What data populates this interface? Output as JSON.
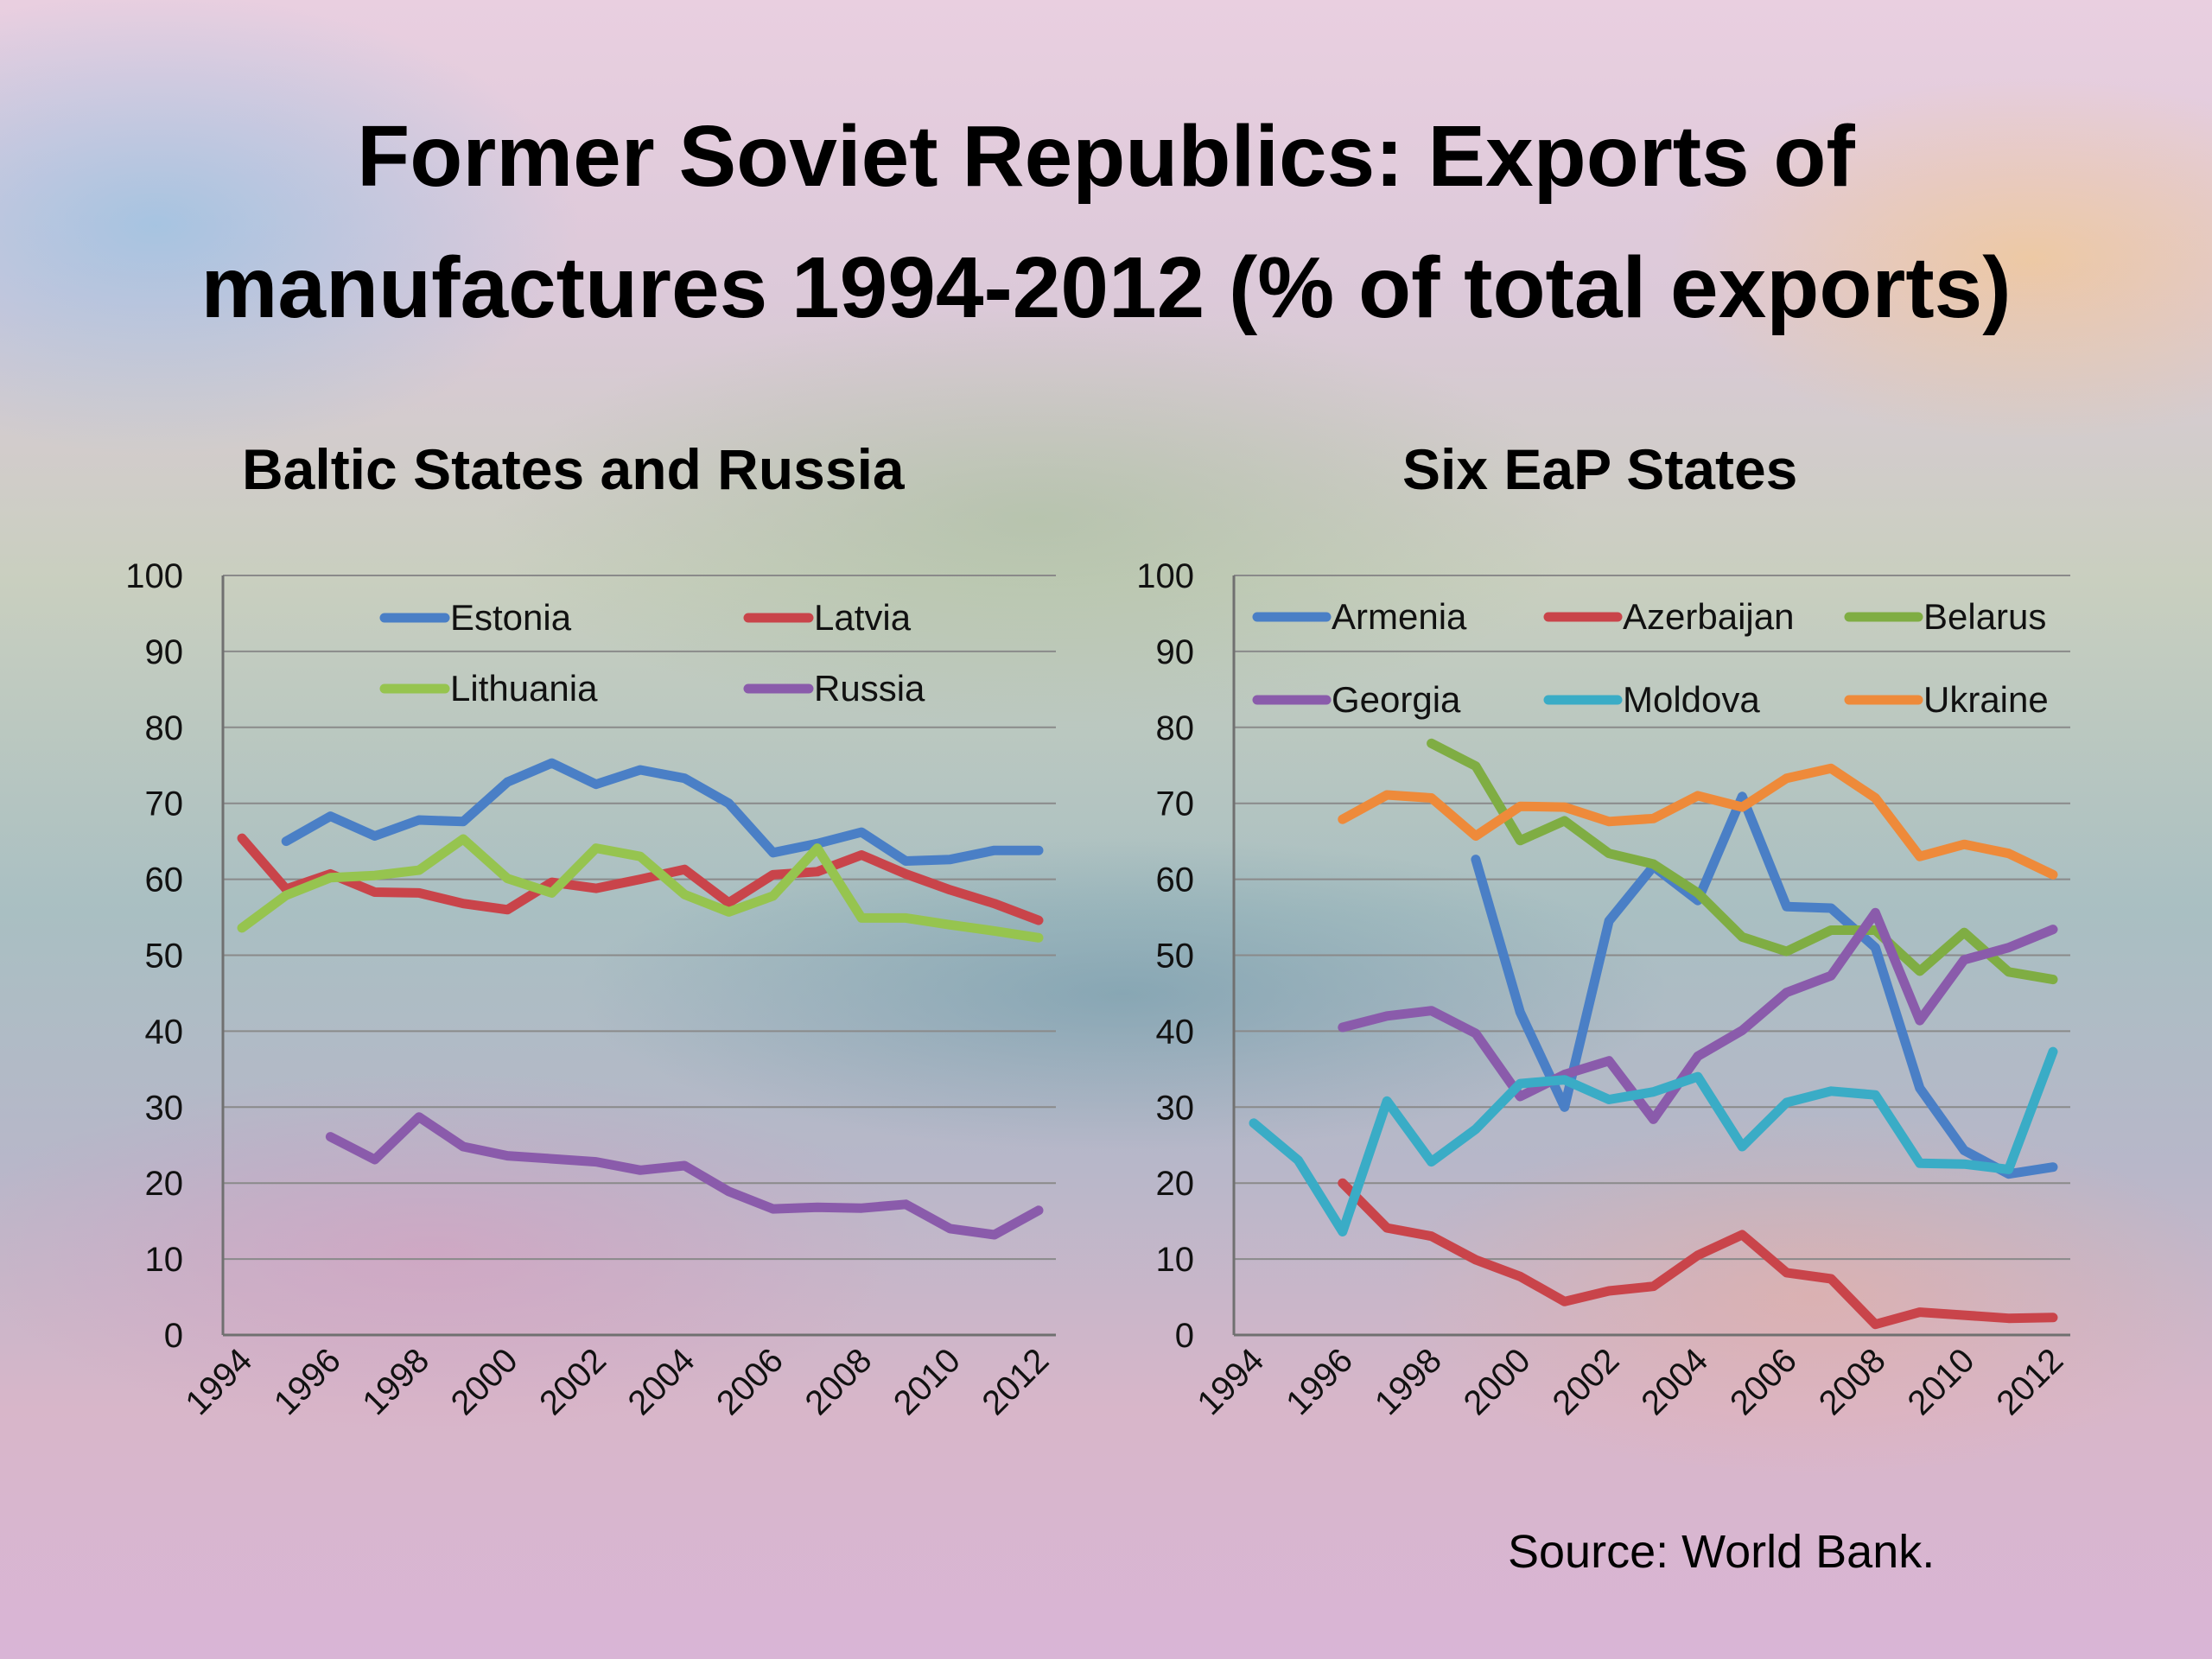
{
  "title_line1": "Former Soviet Republics: Exports of",
  "title_line2": "manufactures 1994-2012 (% of total exports)",
  "source": "Source: World Bank.",
  "chart_data": [
    {
      "type": "line",
      "title": "Baltic States and Russia",
      "x": [
        1994,
        1995,
        1996,
        1997,
        1998,
        1999,
        2000,
        2001,
        2002,
        2003,
        2004,
        2005,
        2006,
        2007,
        2008,
        2009,
        2010,
        2011,
        2012
      ],
      "x_tick_labels": [
        "1994",
        "1996",
        "1998",
        "2000",
        "2002",
        "2004",
        "2006",
        "2008",
        "2010",
        "2012"
      ],
      "y_tick_labels": [
        "0",
        "10",
        "20",
        "30",
        "40",
        "50",
        "60",
        "70",
        "80",
        "90",
        "100"
      ],
      "ylim": [
        0,
        100
      ],
      "grid": true,
      "legend_position": "top",
      "series": [
        {
          "name": "Estonia",
          "color": "#4a7fc6",
          "values": [
            null,
            65.0,
            68.3,
            65.7,
            67.8,
            67.6,
            72.8,
            75.3,
            72.5,
            74.4,
            73.3,
            70.0,
            63.5,
            64.7,
            66.2,
            62.4,
            62.6,
            63.8,
            63.8
          ]
        },
        {
          "name": "Latvia",
          "color": "#c9444a",
          "values": [
            65.4,
            58.7,
            60.7,
            58.3,
            58.2,
            56.8,
            56.0,
            59.6,
            58.8,
            60.0,
            61.3,
            56.9,
            60.6,
            61.0,
            63.2,
            60.7,
            58.6,
            56.8,
            54.6
          ]
        },
        {
          "name": "Lithuania",
          "color": "#96c44f",
          "values": [
            53.6,
            57.9,
            60.2,
            60.5,
            61.2,
            65.3,
            60.1,
            58.2,
            64.1,
            63.0,
            58.0,
            55.7,
            57.8,
            64.1,
            54.9,
            54.9,
            54.0,
            53.2,
            52.3
          ]
        },
        {
          "name": "Russia",
          "color": "#8a5bab",
          "values": [
            null,
            null,
            26.1,
            23.1,
            28.7,
            24.8,
            23.6,
            23.2,
            22.8,
            21.7,
            22.3,
            18.9,
            16.6,
            16.8,
            16.7,
            17.2,
            14.0,
            13.2,
            16.4
          ]
        }
      ]
    },
    {
      "type": "line",
      "title": "Six EaP States",
      "x": [
        1994,
        1995,
        1996,
        1997,
        1998,
        1999,
        2000,
        2001,
        2002,
        2003,
        2004,
        2005,
        2006,
        2007,
        2008,
        2009,
        2010,
        2011,
        2012
      ],
      "x_tick_labels": [
        "1994",
        "1996",
        "1998",
        "2000",
        "2002",
        "2004",
        "2006",
        "2008",
        "2010",
        "2012"
      ],
      "y_tick_labels": [
        "0",
        "10",
        "20",
        "30",
        "40",
        "50",
        "60",
        "70",
        "80",
        "90",
        "100"
      ],
      "ylim": [
        0,
        100
      ],
      "grid": true,
      "legend_position": "top",
      "series": [
        {
          "name": "Armenia",
          "color": "#4a7fc6",
          "values": [
            null,
            null,
            null,
            null,
            null,
            62.6,
            42.5,
            30.0,
            54.5,
            61.7,
            57.2,
            70.9,
            56.4,
            56.2,
            51.0,
            32.5,
            24.3,
            21.2,
            22.1
          ]
        },
        {
          "name": "Azerbaijan",
          "color": "#c9444a",
          "values": [
            null,
            null,
            20.0,
            14.1,
            13.0,
            9.9,
            7.7,
            4.4,
            5.8,
            6.4,
            10.5,
            13.2,
            8.2,
            7.4,
            1.4,
            3.0,
            2.6,
            2.2,
            2.3
          ]
        },
        {
          "name": "Belarus",
          "color": "#7fad43",
          "values": [
            null,
            null,
            null,
            null,
            77.9,
            74.9,
            65.1,
            67.7,
            63.4,
            62.0,
            58.2,
            52.4,
            50.5,
            53.3,
            53.3,
            47.9,
            53.0,
            47.8,
            46.8
          ]
        },
        {
          "name": "Georgia",
          "color": "#8a5bab",
          "values": [
            null,
            null,
            40.5,
            42.0,
            42.7,
            39.7,
            31.4,
            34.3,
            36.1,
            28.4,
            36.7,
            40.1,
            45.1,
            47.3,
            55.6,
            41.4,
            49.4,
            51.0,
            53.4
          ]
        },
        {
          "name": "Moldova",
          "color": "#3aacc6",
          "values": [
            27.9,
            23.0,
            13.6,
            30.8,
            22.8,
            27.1,
            33.1,
            33.6,
            31.0,
            32.0,
            34.0,
            24.8,
            30.6,
            32.1,
            31.6,
            22.6,
            22.5,
            21.8,
            37.3
          ]
        },
        {
          "name": "Ukraine",
          "color": "#ee8a3a",
          "values": [
            null,
            null,
            67.9,
            71.1,
            70.7,
            65.7,
            69.6,
            69.5,
            67.6,
            68.0,
            71.0,
            69.5,
            73.3,
            74.6,
            70.7,
            63.0,
            64.6,
            63.4,
            60.6
          ]
        }
      ]
    }
  ]
}
